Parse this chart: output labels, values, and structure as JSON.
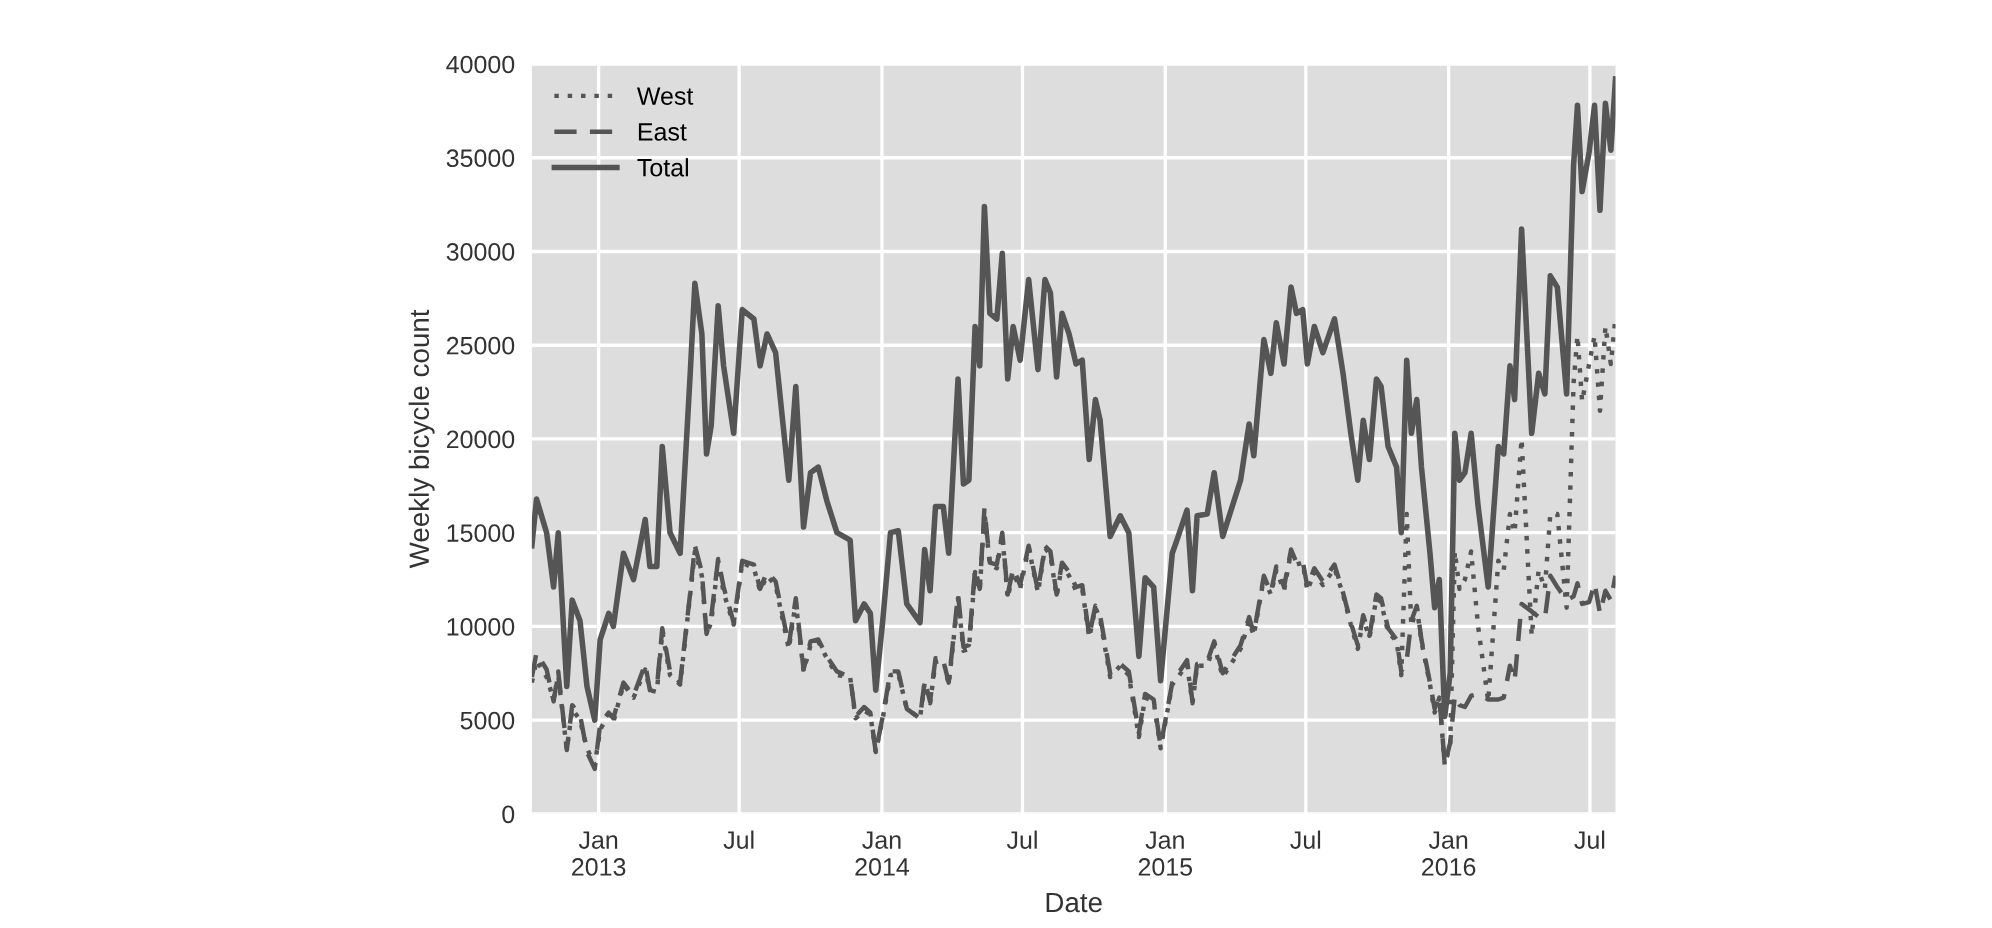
{
  "chart_data": {
    "type": "line",
    "xlabel": "Date",
    "ylabel": "Weekly bicycle count",
    "x": [
      "2012-10-07",
      "2012-10-13",
      "2012-10-26",
      "2012-11-04",
      "2012-11-10",
      "2012-11-21",
      "2012-11-28",
      "2012-12-08",
      "2012-12-17",
      "2012-12-27",
      "2013-01-03",
      "2013-01-14",
      "2013-01-20",
      "2013-02-02",
      "2013-02-15",
      "2013-03-02",
      "2013-03-08",
      "2013-03-17",
      "2013-03-24",
      "2013-04-03",
      "2013-04-16",
      "2013-04-29",
      "2013-05-05",
      "2013-05-14",
      "2013-05-20",
      "2013-05-26",
      "2013-06-04",
      "2013-06-11",
      "2013-06-24",
      "2013-07-05",
      "2013-07-20",
      "2013-07-28",
      "2013-08-06",
      "2013-08-17",
      "2013-09-03",
      "2013-09-12",
      "2013-09-22",
      "2013-10-01",
      "2013-10-11",
      "2013-10-22",
      "2013-11-04",
      "2013-11-21",
      "2013-11-28",
      "2013-12-09",
      "2013-12-17",
      "2013-12-24",
      "2014-01-02",
      "2014-01-12",
      "2014-01-22",
      "2014-02-02",
      "2014-02-19",
      "2014-02-25",
      "2014-03-04",
      "2014-03-11",
      "2014-03-21",
      "2014-03-28",
      "2014-04-09",
      "2014-04-16",
      "2014-04-23",
      "2014-05-01",
      "2014-05-07",
      "2014-05-13",
      "2014-05-20",
      "2014-05-29",
      "2014-06-05",
      "2014-06-12",
      "2014-06-19",
      "2014-06-28",
      "2014-07-09",
      "2014-07-21",
      "2014-07-30",
      "2014-08-06",
      "2014-08-14",
      "2014-08-21",
      "2014-08-30",
      "2014-09-08",
      "2014-09-16",
      "2014-09-25",
      "2014-10-03",
      "2014-10-09",
      "2014-10-22",
      "2014-11-04",
      "2014-11-15",
      "2014-11-28",
      "2014-12-06",
      "2014-12-17",
      "2014-12-26",
      "2015-01-10",
      "2015-01-16",
      "2015-01-29",
      "2015-02-05",
      "2015-02-11",
      "2015-02-24",
      "2015-03-05",
      "2015-03-16",
      "2015-04-08",
      "2015-04-19",
      "2015-04-25",
      "2015-05-08",
      "2015-05-17",
      "2015-05-24",
      "2015-06-03",
      "2015-06-12",
      "2015-06-19",
      "2015-06-27",
      "2015-07-03",
      "2015-07-12",
      "2015-07-23",
      "2015-08-07",
      "2015-08-18",
      "2015-08-28",
      "2015-09-06",
      "2015-09-13",
      "2015-09-21",
      "2015-09-30",
      "2015-10-06",
      "2015-10-15",
      "2015-10-26",
      "2015-11-01",
      "2015-11-08",
      "2015-11-14",
      "2015-11-21",
      "2015-11-27",
      "2015-12-08",
      "2015-12-14",
      "2015-12-20",
      "2015-12-27",
      "2016-01-03",
      "2016-01-09",
      "2016-01-15",
      "2016-01-22",
      "2016-01-30",
      "2016-02-08",
      "2016-02-21",
      "2016-03-05",
      "2016-03-12",
      "2016-03-20",
      "2016-03-26",
      "2016-04-04",
      "2016-04-17",
      "2016-04-26",
      "2016-05-04",
      "2016-05-11",
      "2016-05-20",
      "2016-06-01",
      "2016-06-10",
      "2016-06-15",
      "2016-06-21",
      "2016-06-30",
      "2016-07-07",
      "2016-07-14",
      "2016-07-21",
      "2016-07-28",
      "2016-08-03"
    ],
    "series": [
      {
        "name": "West",
        "color": "#555555",
        "line_style": "dotted",
        "values": [
          7000,
          8200,
          7300,
          6100,
          7400,
          3400,
          5600,
          5000,
          3500,
          2600,
          4500,
          5300,
          4900,
          6900,
          6200,
          7700,
          6600,
          6500,
          9700,
          7400,
          6900,
          11700,
          14000,
          12700,
          9600,
          10200,
          13500,
          11800,
          10100,
          13400,
          13100,
          11900,
          12700,
          12200,
          8800,
          11300,
          7600,
          9000,
          9200,
          8300,
          7400,
          7300,
          5100,
          5500,
          5300,
          3300,
          5100,
          7400,
          7500,
          5600,
          5100,
          7000,
          5900,
          8100,
          8200,
          6900,
          11500,
          8700,
          8800,
          12900,
          11900,
          16100,
          13300,
          13100,
          14900,
          11500,
          12900,
          12000,
          14200,
          11800,
          14200,
          13800,
          11600,
          13300,
          12700,
          11900,
          12000,
          9400,
          11000,
          10400,
          7300,
          7900,
          7400,
          4100,
          6200,
          6000,
          3500,
          6900,
          7200,
          8000,
          5900,
          7900,
          7900,
          9000,
          7300,
          8800,
          10300,
          9500,
          12600,
          11700,
          13000,
          11900,
          14000,
          13300,
          13400,
          11900,
          12900,
          12200,
          13100,
          11700,
          10100,
          8800,
          10400,
          9400,
          11500,
          11300,
          9700,
          9200,
          7400,
          16000,
          10000,
          11000,
          9200,
          6900,
          5400,
          6200,
          2600,
          3700,
          14000,
          12000,
          12500,
          14000,
          10000,
          6000,
          13500,
          13000,
          16000,
          15000,
          20000,
          9500,
          13000,
          12000,
          16000,
          16000,
          11000,
          23000,
          25500,
          22000,
          24000,
          25500,
          21500,
          26000,
          24000,
          26500
        ]
      },
      {
        "name": "East",
        "color": "#555555",
        "line_style": "dashed",
        "values": [
          7300,
          8600,
          7700,
          6000,
          7600,
          3400,
          5800,
          5300,
          3300,
          2400,
          4800,
          5400,
          5100,
          7000,
          6300,
          8000,
          6600,
          6700,
          9900,
          7600,
          7000,
          11800,
          14300,
          12900,
          9600,
          10500,
          13600,
          12100,
          10200,
          13500,
          13300,
          12000,
          12900,
          12400,
          9000,
          11500,
          7700,
          9200,
          9300,
          8400,
          7600,
          7300,
          5200,
          5700,
          5400,
          3300,
          5200,
          7600,
          7600,
          5600,
          5100,
          7100,
          6000,
          8300,
          8200,
          7000,
          11700,
          8900,
          9000,
          13100,
          12000,
          16300,
          13400,
          13300,
          15000,
          11700,
          13100,
          12200,
          14300,
          11900,
          14300,
          14000,
          11700,
          13400,
          12900,
          12100,
          12200,
          9500,
          11100,
          10600,
          7500,
          8000,
          7600,
          4300,
          6400,
          6100,
          3600,
          7000,
          7400,
          8200,
          6000,
          8000,
          8100,
          9200,
          7500,
          9000,
          10500,
          9600,
          12700,
          11800,
          13200,
          12100,
          14100,
          13400,
          13500,
          12100,
          13100,
          12400,
          13300,
          11800,
          10200,
          9000,
          10600,
          9500,
          11700,
          11500,
          9900,
          9300,
          7600,
          8200,
          10300,
          11100,
          9300,
          7000,
          5600,
          6300,
          2600,
          3800,
          6300,
          5800,
          5700,
          6300,
          6400,
          6100,
          6100,
          6200,
          7900,
          7100,
          11200,
          10800,
          10500,
          10400,
          12700,
          12100,
          11400,
          11600,
          12300,
          11200,
          11300,
          12300,
          10700,
          11900,
          11400,
          12700
        ]
      },
      {
        "name": "Total",
        "color": "#555555",
        "line_style": "solid",
        "values": [
          14300,
          16800,
          15000,
          12100,
          15000,
          6800,
          11400,
          10300,
          6800,
          5000,
          9300,
          10700,
          10000,
          13900,
          12500,
          15700,
          13200,
          13200,
          19600,
          15000,
          13900,
          23500,
          28300,
          25600,
          19200,
          20700,
          27100,
          23900,
          20300,
          26900,
          26400,
          23900,
          25600,
          24600,
          17800,
          22800,
          15300,
          18200,
          18500,
          16700,
          15000,
          14600,
          10300,
          11200,
          10700,
          6600,
          10300,
          15000,
          15100,
          11200,
          10200,
          14100,
          11900,
          16400,
          16400,
          13900,
          23200,
          17600,
          17800,
          26000,
          23900,
          32400,
          26700,
          26400,
          29900,
          23200,
          26000,
          24200,
          28500,
          23700,
          28500,
          27800,
          23300,
          26700,
          25600,
          24000,
          24200,
          18900,
          22100,
          21000,
          14800,
          15900,
          15000,
          8400,
          12600,
          12100,
          7100,
          13900,
          14600,
          16200,
          11900,
          15900,
          16000,
          18200,
          14800,
          17800,
          20800,
          19100,
          25300,
          23500,
          26200,
          24000,
          28100,
          26700,
          26900,
          24000,
          26000,
          24600,
          26400,
          23500,
          20300,
          17800,
          21000,
          18900,
          23200,
          22800,
          19600,
          18500,
          15000,
          24200,
          20300,
          22100,
          18500,
          13900,
          11000,
          12500,
          5200,
          7500,
          20300,
          17800,
          18200,
          20300,
          16400,
          12100,
          19600,
          19200,
          23900,
          22100,
          31200,
          20300,
          23500,
          22400,
          28700,
          28100,
          22400,
          34600,
          37800,
          33200,
          35300,
          37800,
          32200,
          37900,
          35400,
          39200
        ]
      }
    ],
    "xlim": [
      "2012-10-07",
      "2016-08-03"
    ],
    "xticks": [
      {
        "value": "2013-01-01",
        "label": "Jan\n2013"
      },
      {
        "value": "2013-07-01",
        "label": "Jul"
      },
      {
        "value": "2014-01-01",
        "label": "Jan\n2014"
      },
      {
        "value": "2014-07-01",
        "label": "Jul"
      },
      {
        "value": "2015-01-01",
        "label": "Jan\n2015"
      },
      {
        "value": "2015-07-01",
        "label": "Jul"
      },
      {
        "value": "2016-01-01",
        "label": "Jan\n2016"
      },
      {
        "value": "2016-07-01",
        "label": "Jul"
      }
    ],
    "ylim": [
      0,
      40000
    ],
    "yticks": [
      0,
      5000,
      10000,
      15000,
      20000,
      25000,
      30000,
      35000,
      40000
    ],
    "grid": true,
    "legend": "top left",
    "marker": "none"
  }
}
